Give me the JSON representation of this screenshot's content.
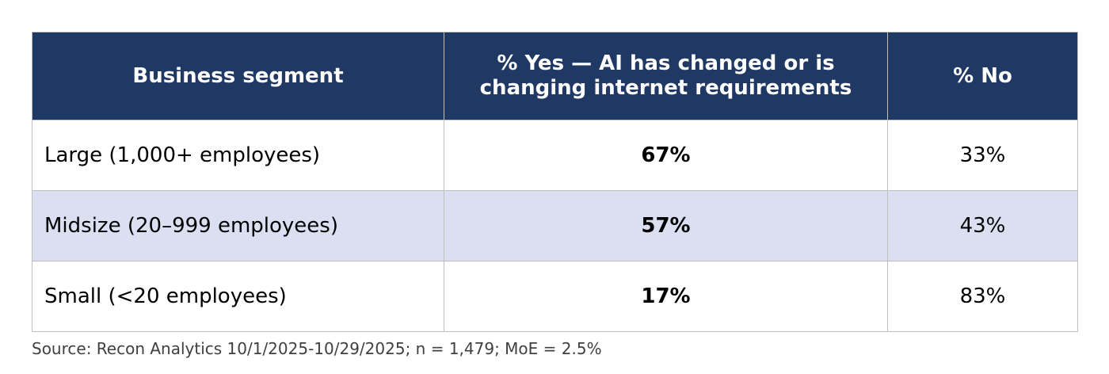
{
  "table": {
    "header": [
      "Business segment",
      "% Yes — AI has changed or is changing internet requirements",
      "% No"
    ],
    "rows": [
      [
        "Large (1,000+ employees)",
        "67%",
        "33%"
      ],
      [
        "Midsize (20–999 employees)",
        "57%",
        "43%"
      ],
      [
        "Small (<20 employees)",
        "17%",
        "83%"
      ]
    ]
  },
  "source": "Source: Recon Analytics 10/1/2025-10/29/2025; n = 1,479; MoE = 2.5%"
}
